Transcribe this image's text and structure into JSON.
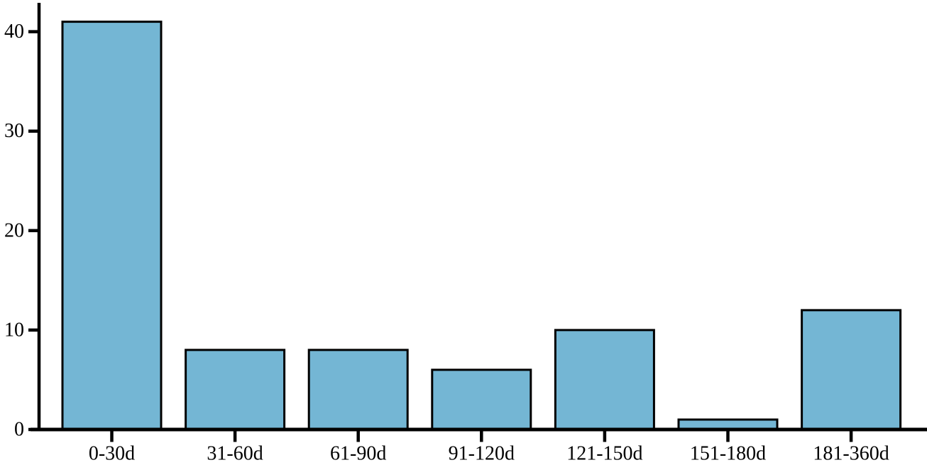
{
  "chart_data": {
    "type": "bar",
    "categories": [
      "0-30d",
      "31-60d",
      "61-90d",
      "91-120d",
      "121-150d",
      "151-180d",
      "181-360d"
    ],
    "values": [
      41,
      8,
      8,
      6,
      10,
      1,
      12
    ],
    "yticks": [
      0,
      10,
      20,
      30,
      40
    ],
    "ylim": [
      0,
      42.9
    ],
    "xlabel": "",
    "ylabel": "",
    "grid": false,
    "legend": false,
    "colors": {
      "bar_fill": "#74b6d4",
      "bar_stroke": "#000000",
      "axis": "#000000",
      "tick_label": "#000000",
      "background": "#ffffff"
    }
  }
}
